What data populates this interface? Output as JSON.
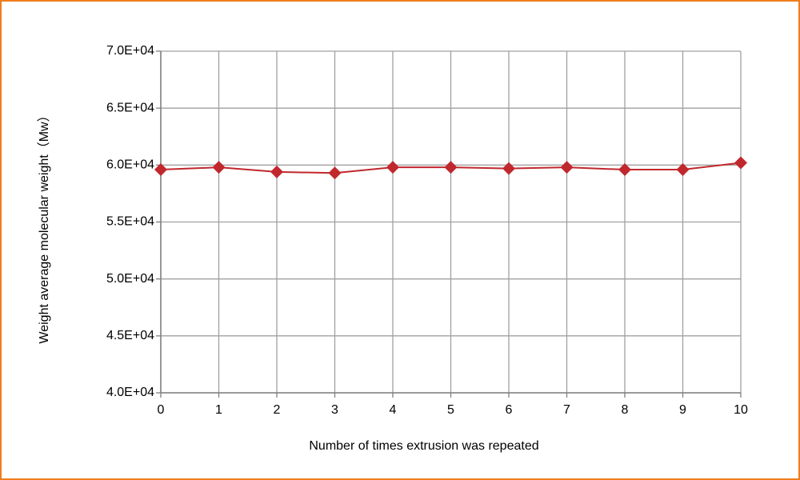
{
  "chart_data": {
    "type": "line",
    "x_label": "Number of times extrusion was repeated",
    "y_label": "Weight average molecular weight（Mw）",
    "x": [
      0,
      1,
      2,
      3,
      4,
      5,
      6,
      7,
      8,
      9,
      10
    ],
    "values": [
      59600,
      59800,
      59400,
      59300,
      59800,
      59800,
      59700,
      59800,
      59600,
      59600,
      60200
    ],
    "color": "#c0282d",
    "xlim": [
      0,
      10
    ],
    "xticks": [
      0,
      1,
      2,
      3,
      4,
      5,
      6,
      7,
      8,
      9,
      10
    ],
    "ylim": [
      40000,
      70000
    ],
    "yticks": [
      {
        "value": 40000,
        "label": "4.0E+04"
      },
      {
        "value": 45000,
        "label": "4.5E+04"
      },
      {
        "value": 50000,
        "label": "5.0E+04"
      },
      {
        "value": 55000,
        "label": "5.5E+04"
      },
      {
        "value": 60000,
        "label": "6.0E+04"
      },
      {
        "value": 65000,
        "label": "6.5E+04"
      },
      {
        "value": 70000,
        "label": "7.0E+04"
      }
    ],
    "grid": true
  }
}
